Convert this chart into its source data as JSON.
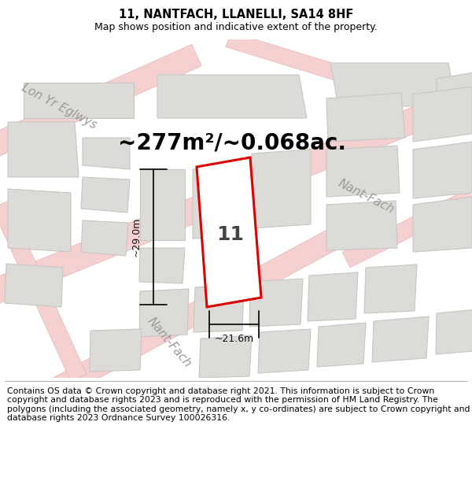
{
  "title": "11, NANTFACH, LLANELLI, SA14 8HF",
  "subtitle": "Map shows position and indicative extent of the property.",
  "area_label": "~277m²/~0.068ac.",
  "dim_height": "~29.0m",
  "dim_width": "~21.6m",
  "property_label": "11",
  "street_nantfach_1": "Nant-Fach",
  "street_nantfach_2": "Nant-Fach",
  "street_lonyr": "Lon Yr Eglwys",
  "footer": "Contains OS data © Crown copyright and database right 2021. This information is subject to Crown copyright and database rights 2023 and is reproduced with the permission of HM Land Registry. The polygons (including the associated geometry, namely x, y co-ordinates) are subject to Crown copyright and database rights 2023 Ordnance Survey 100026316.",
  "bg_color": "#f0eeec",
  "building_fill": "#dddbd8",
  "building_edge": "#c8c6c2",
  "road_fill": "#f5d0d0",
  "road_edge": "#e8b0b0",
  "property_fill": "#ffffff",
  "property_edge": "#dd0000",
  "dim_color": "#111111",
  "street_color": "#999999",
  "title_fontsize": 10.5,
  "subtitle_fontsize": 9,
  "area_fontsize": 20,
  "label_fontsize": 18,
  "footer_fontsize": 7.8,
  "street_fontsize": 11
}
